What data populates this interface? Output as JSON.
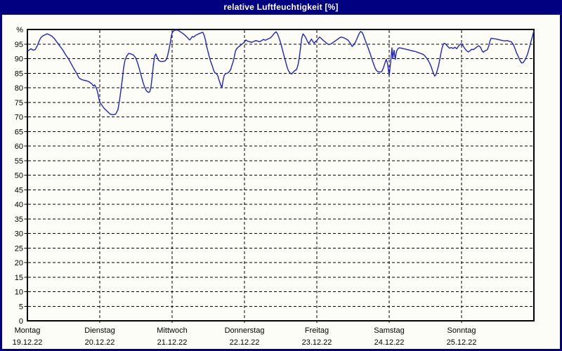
{
  "window": {
    "title": "relative Luftfeuchtigkeit [%]"
  },
  "colors": {
    "titlebar_bg": "#000080",
    "window_border": "#000080",
    "title_text": "#ffffff",
    "background": "#fbfdf6",
    "grid": "#000000",
    "axis_text": "#000000",
    "series_line": "#2222c8"
  },
  "chart_data": {
    "type": "line",
    "title": "relative Luftfeuchtigkeit [%]",
    "y_unit_label": "%",
    "ylim": [
      0,
      100
    ],
    "ytick_step": 5,
    "y_ticks": [
      0,
      5,
      10,
      15,
      20,
      25,
      30,
      35,
      40,
      45,
      50,
      55,
      60,
      65,
      70,
      75,
      80,
      85,
      90,
      95
    ],
    "grid": "dashed, horizontal every 5 %, vertical at day boundaries",
    "legend": "none",
    "x_hours_total": 168,
    "x_days": [
      {
        "name": "Montag",
        "date": "19.12.22"
      },
      {
        "name": "Dienstag",
        "date": "20.12.22"
      },
      {
        "name": "Mittwoch",
        "date": "21.12.22"
      },
      {
        "name": "Donnerstag",
        "date": "22.12.22"
      },
      {
        "name": "Freitag",
        "date": "23.12.22"
      },
      {
        "name": "Samstag",
        "date": "24.12.22"
      },
      {
        "name": "Sonntag",
        "date": "25.12.22"
      }
    ],
    "series": [
      {
        "name": "relative Luftfeuchtigkeit",
        "color": "#2222c8",
        "points_t_hours_value_pct": [
          [
            0,
            92.6
          ],
          [
            0.5,
            92.9
          ],
          [
            1.2,
            93.4
          ],
          [
            1.9,
            92.9
          ],
          [
            2.6,
            93.1
          ],
          [
            3.3,
            94.5
          ],
          [
            3.9,
            96.0
          ],
          [
            4.4,
            97.1
          ],
          [
            5.1,
            97.8
          ],
          [
            5.7,
            98.1
          ],
          [
            6.5,
            98.5
          ],
          [
            7.3,
            98.2
          ],
          [
            8.1,
            97.7
          ],
          [
            9,
            96.8
          ],
          [
            9.9,
            95.5
          ],
          [
            10.8,
            94.3
          ],
          [
            11.8,
            92.9
          ],
          [
            12.7,
            91.3
          ],
          [
            13.7,
            89.8
          ],
          [
            14.6,
            88.1
          ],
          [
            15.5,
            86.4
          ],
          [
            16.3,
            85.0
          ],
          [
            17.1,
            83.4
          ],
          [
            17.8,
            82.9
          ],
          [
            18.6,
            82.6
          ],
          [
            19.6,
            82.4
          ],
          [
            20.5,
            82.0
          ],
          [
            21.4,
            81.3
          ],
          [
            21.9,
            80.6
          ],
          [
            22.3,
            81.0
          ],
          [
            22.8,
            80.1
          ],
          [
            23.3,
            78.4
          ],
          [
            23.7,
            76.4
          ],
          [
            24,
            75.1
          ],
          [
            24.7,
            74.0
          ],
          [
            25.4,
            73.0
          ],
          [
            26.1,
            72.3
          ],
          [
            26.8,
            71.6
          ],
          [
            27.4,
            71.0
          ],
          [
            28.4,
            70.7
          ],
          [
            29.3,
            71.0
          ],
          [
            30,
            72.4
          ],
          [
            30.5,
            75.3
          ],
          [
            31,
            79.0
          ],
          [
            31.5,
            83.0
          ],
          [
            31.9,
            86.8
          ],
          [
            32.4,
            89.5
          ],
          [
            33,
            91.0
          ],
          [
            33.6,
            91.8
          ],
          [
            34.4,
            91.6
          ],
          [
            35.2,
            91.2
          ],
          [
            35.9,
            90.3
          ],
          [
            36.5,
            88.7
          ],
          [
            37.1,
            86.6
          ],
          [
            37.7,
            84.3
          ],
          [
            38.3,
            82.0
          ],
          [
            38.9,
            80.2
          ],
          [
            39.5,
            78.9
          ],
          [
            40.1,
            78.4
          ],
          [
            40.6,
            78.6
          ],
          [
            41,
            80.5
          ],
          [
            41.4,
            84.0
          ],
          [
            41.8,
            88.0
          ],
          [
            42.2,
            90.8
          ],
          [
            42.6,
            91.6
          ],
          [
            43,
            90.6
          ],
          [
            43.5,
            89.4
          ],
          [
            44.2,
            89.0
          ],
          [
            45,
            89.0
          ],
          [
            45.7,
            89.2
          ],
          [
            46.2,
            90.0
          ],
          [
            46.6,
            91.4
          ],
          [
            47,
            93.3
          ],
          [
            47.4,
            95.5
          ],
          [
            47.7,
            97.4
          ],
          [
            48,
            98.8
          ],
          [
            48.4,
            99.4
          ],
          [
            48.8,
            99.7
          ],
          [
            49.5,
            99.8
          ],
          [
            50,
            99.7
          ],
          [
            50.6,
            99.3
          ],
          [
            51.5,
            98.7
          ],
          [
            52.3,
            98.0
          ],
          [
            53,
            97.3
          ],
          [
            53.6,
            96.6
          ],
          [
            53.9,
            96.4
          ],
          [
            54.3,
            97.0
          ],
          [
            54.7,
            97.6
          ],
          [
            55.2,
            97.4
          ],
          [
            55.8,
            98.0
          ],
          [
            56.4,
            98.3
          ],
          [
            57,
            98.6
          ],
          [
            57.7,
            98.9
          ],
          [
            58.2,
            99.0
          ],
          [
            58.7,
            97.8
          ],
          [
            59.1,
            96.2
          ],
          [
            59.4,
            94.4
          ],
          [
            59.8,
            92.9
          ],
          [
            60.2,
            91.1
          ],
          [
            60.6,
            89.6
          ],
          [
            61,
            88.4
          ],
          [
            61.4,
            87.3
          ],
          [
            61.8,
            85.9
          ],
          [
            62.2,
            85.1
          ],
          [
            62.7,
            84.9
          ],
          [
            63.2,
            84.0
          ],
          [
            63.7,
            82.2
          ],
          [
            64.1,
            81.0
          ],
          [
            64.5,
            80.0
          ],
          [
            64.9,
            82.5
          ],
          [
            65.3,
            84.3
          ],
          [
            65.8,
            84.9
          ],
          [
            66.4,
            85.0
          ],
          [
            66.9,
            85.5
          ],
          [
            67.4,
            86.2
          ],
          [
            67.8,
            87.6
          ],
          [
            68.2,
            88.8
          ],
          [
            68.6,
            90.5
          ],
          [
            69,
            92.5
          ],
          [
            69.4,
            93.4
          ],
          [
            70,
            94.0
          ],
          [
            70.6,
            94.5
          ],
          [
            71.2,
            95.0
          ],
          [
            71.7,
            95.4
          ],
          [
            72,
            95.7
          ],
          [
            72.5,
            96.4
          ],
          [
            73,
            96.0
          ],
          [
            73.7,
            95.8
          ],
          [
            74.4,
            95.6
          ],
          [
            75.1,
            95.9
          ],
          [
            75.8,
            96.2
          ],
          [
            76.4,
            96.0
          ],
          [
            77.1,
            95.8
          ],
          [
            77.7,
            96.2
          ],
          [
            78.3,
            96.6
          ],
          [
            78.9,
            96.3
          ],
          [
            79.5,
            96.6
          ],
          [
            80.1,
            96.9
          ],
          [
            80.7,
            97.2
          ],
          [
            81.3,
            97.9
          ],
          [
            81.9,
            98.7
          ],
          [
            82.5,
            99.2
          ],
          [
            83,
            98.4
          ],
          [
            83.4,
            97.3
          ],
          [
            83.8,
            96.1
          ],
          [
            84.2,
            94.6
          ],
          [
            84.6,
            93.0
          ],
          [
            85,
            91.4
          ],
          [
            85.4,
            89.9
          ],
          [
            85.8,
            88.4
          ],
          [
            86.2,
            86.9
          ],
          [
            86.6,
            85.8
          ],
          [
            87.1,
            85.1
          ],
          [
            87.6,
            84.7
          ],
          [
            88.1,
            85.3
          ],
          [
            88.7,
            85.9
          ],
          [
            89.3,
            86.3
          ],
          [
            89.8,
            88.0
          ],
          [
            90.2,
            90.5
          ],
          [
            90.6,
            93.7
          ],
          [
            91,
            97.0
          ],
          [
            91.4,
            98.5
          ],
          [
            91.9,
            97.9
          ],
          [
            92.4,
            97.0
          ],
          [
            92.9,
            95.9
          ],
          [
            93.3,
            95.2
          ],
          [
            93.8,
            96.0
          ],
          [
            94.2,
            96.7
          ],
          [
            94.7,
            95.9
          ],
          [
            95.1,
            95.3
          ],
          [
            95.6,
            95.9
          ],
          [
            96,
            96.2
          ],
          [
            96.5,
            96.9
          ],
          [
            96.9,
            97.4
          ],
          [
            97.5,
            96.9
          ],
          [
            98.1,
            96.3
          ],
          [
            98.7,
            95.8
          ],
          [
            99.3,
            95.2
          ],
          [
            100,
            94.8
          ],
          [
            100.8,
            95.1
          ],
          [
            101.6,
            95.7
          ],
          [
            102.4,
            96.3
          ],
          [
            103.2,
            96.9
          ],
          [
            104,
            97.4
          ],
          [
            104.8,
            97.2
          ],
          [
            105.6,
            96.8
          ],
          [
            106.4,
            96.3
          ],
          [
            107.1,
            95.3
          ],
          [
            107.7,
            94.2
          ],
          [
            108.3,
            94.8
          ],
          [
            108.9,
            95.9
          ],
          [
            109.5,
            97.3
          ],
          [
            110.1,
            98.7
          ],
          [
            110.5,
            99.3
          ],
          [
            111,
            99.0
          ],
          [
            111.4,
            98.2
          ],
          [
            111.8,
            97.0
          ],
          [
            112.2,
            95.9
          ],
          [
            112.6,
            94.8
          ],
          [
            113,
            93.7
          ],
          [
            113.4,
            92.5
          ],
          [
            113.8,
            91.4
          ],
          [
            114.2,
            90.0
          ],
          [
            114.6,
            88.9
          ],
          [
            115,
            87.7
          ],
          [
            115.4,
            86.6
          ],
          [
            115.8,
            85.9
          ],
          [
            116.3,
            85.5
          ],
          [
            117,
            85.4
          ],
          [
            117.5,
            85.5
          ],
          [
            118,
            86.6
          ],
          [
            118.5,
            88.2
          ],
          [
            119,
            89.8
          ],
          [
            119.4,
            88.6
          ],
          [
            119.7,
            86.5
          ],
          [
            120,
            84.2
          ],
          [
            120.2,
            86.0
          ],
          [
            120.4,
            88.0
          ],
          [
            120.7,
            91.0
          ],
          [
            120.9,
            93.7
          ],
          [
            121.2,
            90.1
          ],
          [
            121.6,
            92.9
          ],
          [
            122,
            89.7
          ],
          [
            122.4,
            92.4
          ],
          [
            122.9,
            93.4
          ],
          [
            123.3,
            93.7
          ],
          [
            124,
            93.6
          ],
          [
            124.8,
            93.4
          ],
          [
            125.6,
            93.2
          ],
          [
            126.4,
            93.0
          ],
          [
            127.2,
            92.8
          ],
          [
            128,
            92.6
          ],
          [
            128.8,
            92.4
          ],
          [
            129.6,
            92.1
          ],
          [
            130.4,
            91.8
          ],
          [
            131.2,
            91.5
          ],
          [
            131.8,
            91.0
          ],
          [
            132.4,
            90.2
          ],
          [
            132.9,
            89.4
          ],
          [
            133.4,
            88.5
          ],
          [
            133.9,
            87.3
          ],
          [
            134.3,
            86.0
          ],
          [
            134.7,
            84.9
          ],
          [
            135.1,
            84.0
          ],
          [
            135.5,
            84.5
          ],
          [
            135.9,
            85.8
          ],
          [
            136.3,
            87.3
          ],
          [
            136.7,
            89.3
          ],
          [
            137.1,
            91.5
          ],
          [
            137.5,
            93.5
          ],
          [
            137.9,
            94.8
          ],
          [
            138.3,
            95.3
          ],
          [
            138.8,
            94.9
          ],
          [
            139.4,
            94.2
          ],
          [
            140,
            93.6
          ],
          [
            140.6,
            93.8
          ],
          [
            141.2,
            93.5
          ],
          [
            141.8,
            93.9
          ],
          [
            142.4,
            93.4
          ],
          [
            143,
            94.3
          ],
          [
            143.5,
            94.9
          ],
          [
            144,
            95.1
          ],
          [
            144.5,
            94.4
          ],
          [
            145,
            93.6
          ],
          [
            145.6,
            92.8
          ],
          [
            146.2,
            92.3
          ],
          [
            146.8,
            92.7
          ],
          [
            147.4,
            93.2
          ],
          [
            148,
            93.1
          ],
          [
            148.6,
            93.6
          ],
          [
            149.2,
            94.1
          ],
          [
            149.7,
            94.4
          ],
          [
            150.3,
            93.9
          ],
          [
            150.8,
            92.7
          ],
          [
            151.2,
            92.2
          ],
          [
            151.6,
            92.5
          ],
          [
            152,
            92.8
          ],
          [
            152.5,
            93.0
          ],
          [
            153,
            94.2
          ],
          [
            153.4,
            95.9
          ],
          [
            153.8,
            97.0
          ],
          [
            154.4,
            96.9
          ],
          [
            155.2,
            96.8
          ],
          [
            156,
            96.6
          ],
          [
            156.8,
            96.4
          ],
          [
            157.6,
            96.2
          ],
          [
            158.4,
            96.1
          ],
          [
            159.2,
            96.2
          ],
          [
            160,
            95.9
          ],
          [
            160.6,
            95.7
          ],
          [
            161.2,
            94.8
          ],
          [
            161.7,
            93.5
          ],
          [
            162.2,
            92.1
          ],
          [
            162.7,
            91.0
          ],
          [
            163.1,
            90.0
          ],
          [
            163.5,
            89.1
          ],
          [
            163.9,
            88.5
          ],
          [
            164.4,
            88.6
          ],
          [
            164.9,
            89.3
          ],
          [
            165.4,
            90.3
          ],
          [
            165.9,
            91.6
          ],
          [
            166.3,
            93.0
          ],
          [
            166.7,
            94.5
          ],
          [
            167.1,
            96.1
          ],
          [
            167.5,
            97.6
          ],
          [
            167.8,
            98.8
          ],
          [
            168,
            99.5
          ]
        ]
      }
    ]
  }
}
